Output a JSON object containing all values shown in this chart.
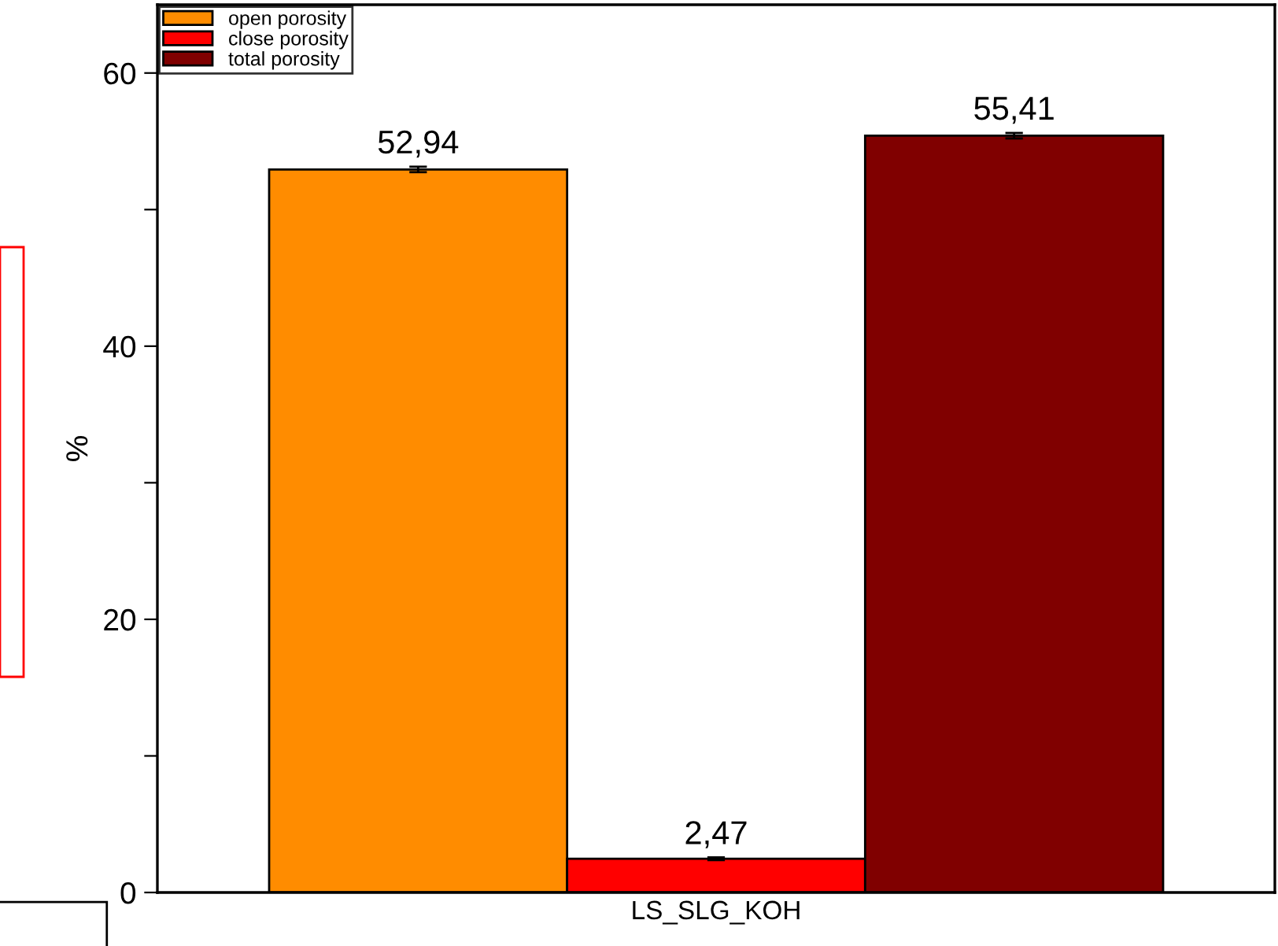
{
  "chart_data": {
    "type": "bar",
    "categories": [
      "LS_SLG_KOH"
    ],
    "ylabel": "%",
    "series": [
      {
        "name": "open porosity",
        "color": "#ff8c00",
        "values": [
          52.94
        ],
        "errors": [
          0.2
        ],
        "value_labels": [
          "52,94"
        ]
      },
      {
        "name": "close porosity",
        "color": "#ff0000",
        "values": [
          2.47
        ],
        "errors": [
          0.1
        ],
        "value_labels": [
          "2,47"
        ]
      },
      {
        "name": "total porosity",
        "color": "#800000",
        "values": [
          55.41
        ],
        "errors": [
          0.2
        ],
        "value_labels": [
          "55,41"
        ]
      }
    ],
    "ylim": [
      0,
      65
    ],
    "yticks": [
      0,
      {
        "value": 10,
        "label": null
      },
      20,
      {
        "value": 30,
        "label": null
      },
      40,
      {
        "value": 50,
        "label": null
      },
      60
    ],
    "grid": false,
    "legend": "top left"
  }
}
